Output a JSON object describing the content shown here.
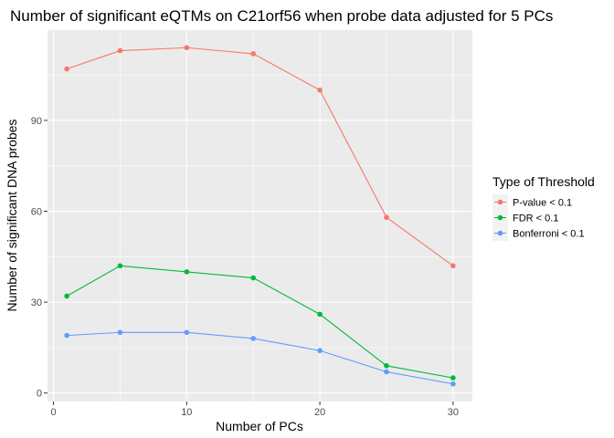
{
  "chart_data": {
    "type": "line",
    "title": "Number of significant eQTMs on C21orf56 when probe data adjusted for 5 PCs",
    "xlabel": "Number of PCs",
    "ylabel": "Number of significant DNA probes",
    "x": [
      1,
      5,
      10,
      15,
      20,
      25,
      30
    ],
    "xlim": [
      -0.45,
      31.45
    ],
    "ylim": [
      -2.8,
      119.8
    ],
    "x_ticks": [
      0,
      10,
      20,
      30
    ],
    "y_ticks": [
      0,
      30,
      60,
      90
    ],
    "grid": true,
    "legend": {
      "title": "Type of Threshold",
      "position": "right"
    },
    "series": [
      {
        "name": "P-value < 0.1",
        "color": "#F8766D",
        "values": [
          107,
          113,
          114,
          112,
          100,
          58,
          42
        ]
      },
      {
        "name": "FDR < 0.1",
        "color": "#00BA38",
        "values": [
          32,
          42,
          40,
          38,
          26,
          9,
          5
        ]
      },
      {
        "name": "Bonferroni < 0.1",
        "color": "#619CFF",
        "values": [
          19,
          20,
          20,
          18,
          14,
          7,
          3
        ]
      }
    ]
  }
}
